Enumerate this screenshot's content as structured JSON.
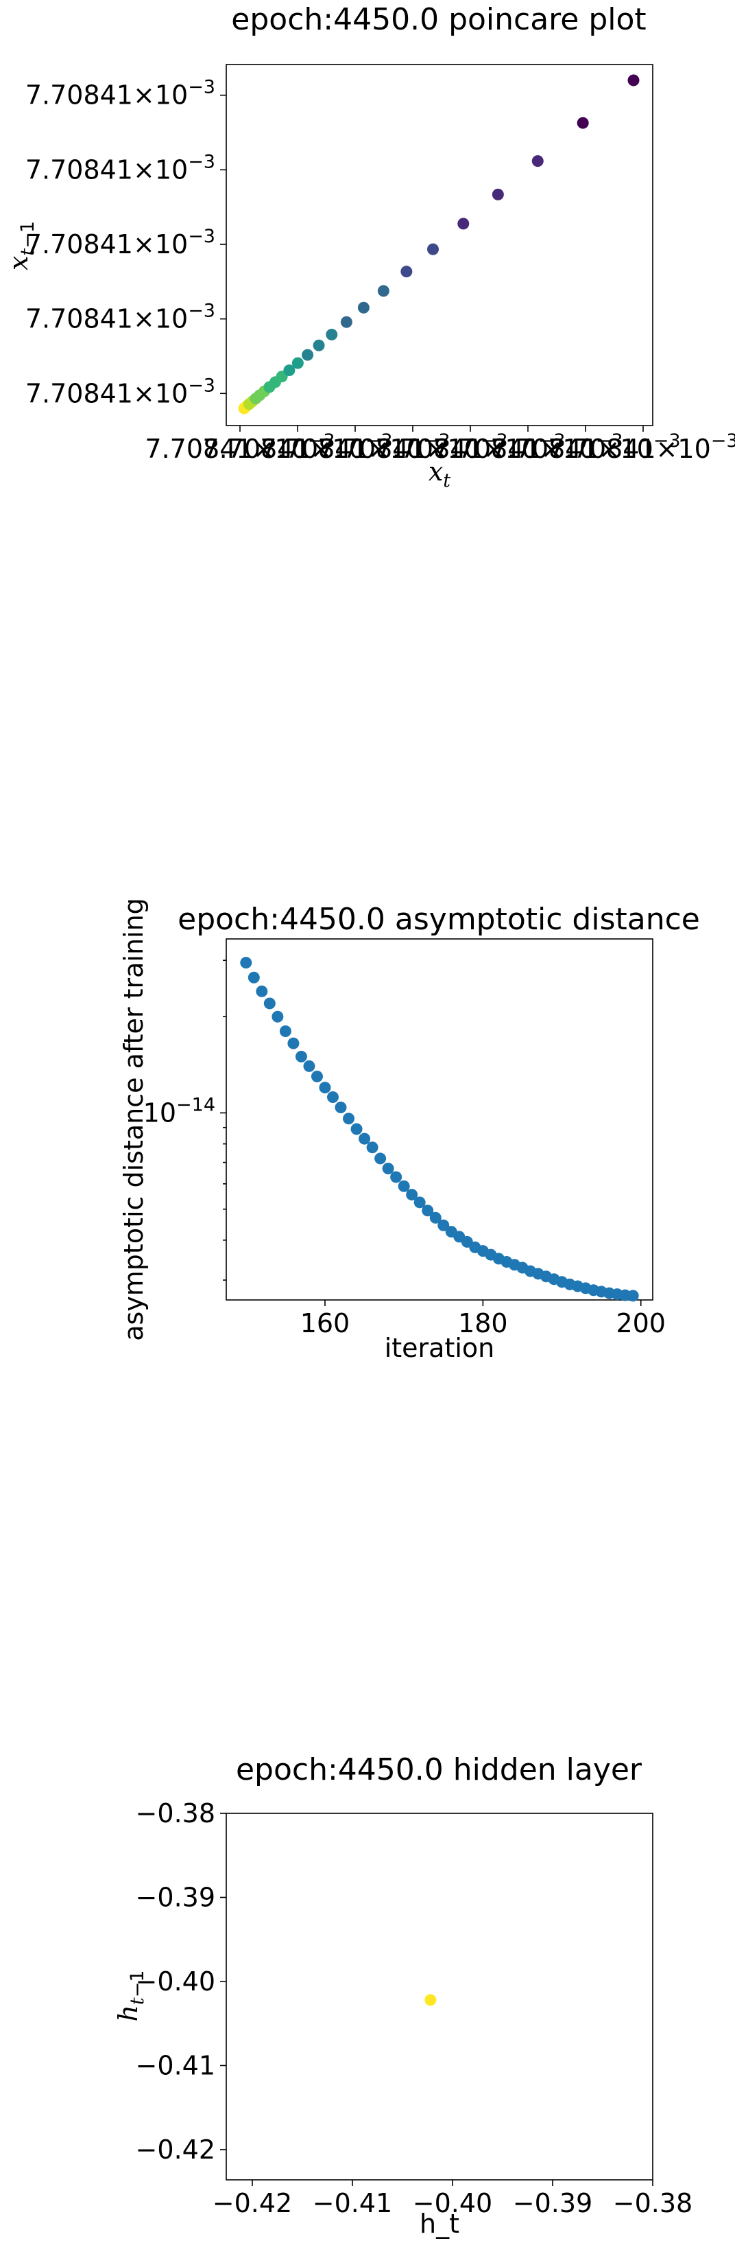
{
  "chart_data": [
    {
      "type": "scatter",
      "title": "epoch:4450.0 poincare plot",
      "xlabel": "x_t",
      "ylabel": "x_{t-1}",
      "x_ticklabels": [
        "7.70841×10^{-3}",
        "7.70841×10^{-3}",
        "7.70841×10^{-3}",
        "7.70841×10^{-3}",
        "7.70841×10^{-3}",
        "7.70841×10^{-3}",
        "7.70841×10^{-3}",
        "7.70841×10^{-3}"
      ],
      "y_ticklabels": [
        "7.70841×10^{-3}",
        "7.70841×10^{-3}",
        "7.70841×10^{-3}",
        "7.70841×10^{-3}",
        "7.70841×10^{-3}"
      ],
      "x_fraction": [
        0.0,
        0.006,
        0.013,
        0.021,
        0.03,
        0.04,
        0.052,
        0.065,
        0.08,
        0.097,
        0.116,
        0.138,
        0.163,
        0.192,
        0.225,
        0.263,
        0.307,
        0.358,
        0.417,
        0.485,
        0.563,
        0.652,
        0.754,
        0.87,
        1.0
      ],
      "y_fraction": [
        0.0,
        0.006,
        0.013,
        0.021,
        0.03,
        0.04,
        0.052,
        0.065,
        0.08,
        0.097,
        0.116,
        0.138,
        0.163,
        0.192,
        0.225,
        0.263,
        0.307,
        0.358,
        0.417,
        0.485,
        0.563,
        0.652,
        0.754,
        0.87,
        1.0
      ],
      "colormap": [
        "#fde725",
        "#b5de2b",
        "#6ece58",
        "#35b779",
        "#1f9e89",
        "#26828e",
        "#31688e",
        "#3e4989",
        "#482878",
        "#440154"
      ],
      "grid": false
    },
    {
      "type": "scatter",
      "title": "epoch:4450.0 asymptotic distance",
      "xlabel": "iteration",
      "ylabel": "asymptotic distance after training",
      "yscale": "log",
      "xlim": [
        147.5,
        201.5
      ],
      "ylim": [
        2.6e-15,
        3.5e-14
      ],
      "x_ticks": [
        160,
        180,
        200
      ],
      "y_ticks": [
        1e-14
      ],
      "y_ticklabels": [
        "10^{-14}"
      ],
      "x": [
        150,
        151,
        152,
        153,
        154,
        155,
        156,
        157,
        158,
        159,
        160,
        161,
        162,
        163,
        164,
        165,
        166,
        167,
        168,
        169,
        170,
        171,
        172,
        173,
        174,
        175,
        176,
        177,
        178,
        179,
        180,
        181,
        182,
        183,
        184,
        185,
        186,
        187,
        188,
        189,
        190,
        191,
        192,
        193,
        194,
        195,
        196,
        197,
        198,
        199
      ],
      "y": [
        2.95e-14,
        2.65e-14,
        2.4e-14,
        2.2e-14,
        2e-14,
        1.8e-14,
        1.65e-14,
        1.5e-14,
        1.4e-14,
        1.3e-14,
        1.2e-14,
        1.12e-14,
        1.04e-14,
        9.6e-15,
        8.9e-15,
        8.3e-15,
        7.8e-15,
        7.2e-15,
        6.7e-15,
        6.3e-15,
        5.9e-15,
        5.55e-15,
        5.25e-15,
        4.95e-15,
        4.7e-15,
        4.45e-15,
        4.25e-15,
        4.1e-15,
        3.95e-15,
        3.8e-15,
        3.7e-15,
        3.6e-15,
        3.5e-15,
        3.42e-15,
        3.35e-15,
        3.28e-15,
        3.2e-15,
        3.14e-15,
        3.08e-15,
        3.02e-15,
        2.96e-15,
        2.91e-15,
        2.87e-15,
        2.83e-15,
        2.79e-15,
        2.76e-15,
        2.73e-15,
        2.71e-15,
        2.69e-15,
        2.68e-15
      ],
      "color": "#1f77b4",
      "grid": false
    },
    {
      "type": "scatter",
      "title": "epoch:4450.0 hidden layer",
      "xlabel": "h_t",
      "ylabel": "h_{t-1}",
      "xlim": [
        -0.4226,
        -0.38
      ],
      "ylim": [
        -0.4236,
        -0.38
      ],
      "x_ticks": [
        -0.42,
        -0.41,
        -0.4,
        -0.39,
        -0.38
      ],
      "y_ticks": [
        -0.38,
        -0.39,
        -0.4,
        -0.41,
        -0.42
      ],
      "x_ticklabels": [
        "−0.42",
        "−0.41",
        "−0.40",
        "−0.39",
        "−0.38"
      ],
      "y_ticklabels": [
        "−0.38",
        "−0.39",
        "−0.40",
        "−0.41",
        "−0.42"
      ],
      "x": [
        -0.4022
      ],
      "y": [
        -0.4022
      ],
      "color": "#fde725",
      "grid": false
    }
  ]
}
